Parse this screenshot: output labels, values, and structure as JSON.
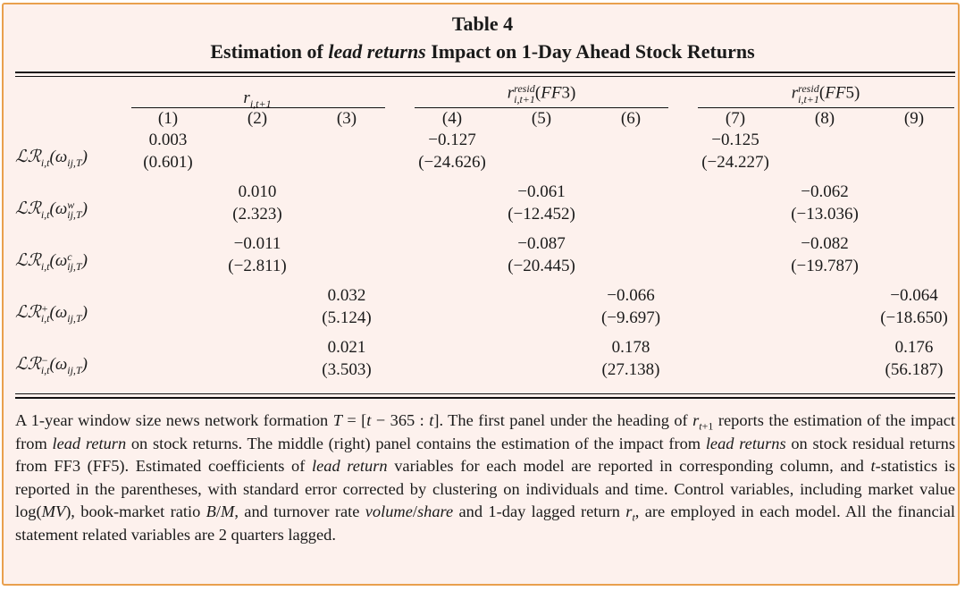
{
  "table": {
    "title_line1": "Table 4",
    "title_line2": "Estimation of lead returns Impact on 1-Day Ahead Stock Returns",
    "title_prefix": "Estimation of ",
    "title_italic": "lead returns",
    "title_suffix": " Impact on 1-Day Ahead Stock Returns",
    "panels": [
      "r_{i,t+1}",
      "r^{resid}_{i,t+1}(FF3)",
      "r^{resid}_{i,t+1}(FF5)"
    ],
    "columns": [
      "(1)",
      "(2)",
      "(3)",
      "(4)",
      "(5)",
      "(6)",
      "(7)",
      "(8)",
      "(9)"
    ],
    "rows": [
      {
        "label": "LR_{i,t}(ω_{ij,T})",
        "cells": [
          {
            "col": 1,
            "coef": "0.003",
            "t": "(0.601)"
          },
          {
            "col": 4,
            "coef": "−0.127",
            "t": "(−24.626)"
          },
          {
            "col": 7,
            "coef": "−0.125",
            "t": "(−24.227)"
          }
        ]
      },
      {
        "label": "LR_{i,t}(ω^w_{ij,T})",
        "cells": [
          {
            "col": 2,
            "coef": "0.010",
            "t": "(2.323)"
          },
          {
            "col": 5,
            "coef": "−0.061",
            "t": "(−12.452)"
          },
          {
            "col": 8,
            "coef": "−0.062",
            "t": "(−13.036)"
          }
        ]
      },
      {
        "label": "LR_{i,t}(ω^c_{ij,T})",
        "cells": [
          {
            "col": 2,
            "coef": "−0.011",
            "t": "(−2.811)"
          },
          {
            "col": 5,
            "coef": "−0.087",
            "t": "(−20.445)"
          },
          {
            "col": 8,
            "coef": "−0.082",
            "t": "(−19.787)"
          }
        ]
      },
      {
        "label": "LR^+_{i,t}(ω_{ij,T})",
        "cells": [
          {
            "col": 3,
            "coef": "0.032",
            "t": "(5.124)"
          },
          {
            "col": 6,
            "coef": "−0.066",
            "t": "(−9.697)"
          },
          {
            "col": 9,
            "coef": "−0.064",
            "t": "(−18.650)"
          }
        ]
      },
      {
        "label": "LR^−_{i,t}(ω_{ij,T})",
        "cells": [
          {
            "col": 3,
            "coef": "0.021",
            "t": "(3.503)"
          },
          {
            "col": 6,
            "coef": "0.178",
            "t": "(27.138)"
          },
          {
            "col": 9,
            "coef": "0.176",
            "t": "(56.187)"
          }
        ]
      }
    ]
  },
  "note": {
    "lines": [
      "A 1-year window size news network formation T = [t − 365 : t]. The first panel under the heading of r_{t+1}",
      "reports the estimation of the impact from lead return on stock returns. The middle (right) panel contains the",
      "estimation of the impact from lead returns on stock residual returns from FF3 (FF5). Estimated coefficients",
      "of lead return variables for each model are reported in corresponding column, and t-statistics is reported",
      "in the parentheses, with standard error corrected by clustering on individuals and time. Control variables,",
      "including market value log(MV), book-market ratio B/M, and turnover rate volume/share and 1-day lagged",
      "return r_t, are employed in each model. All the financial statement related variables are 2 quarters lagged."
    ]
  },
  "colors": {
    "frame": "#e9a04d",
    "background": "#fdf1ed",
    "text": "#1a1a1a"
  }
}
